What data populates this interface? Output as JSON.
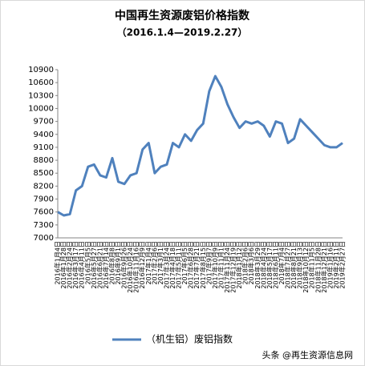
{
  "chart_data": {
    "type": "line",
    "title": "中国再生资源废铝价格指数",
    "subtitle": "（2016.1.4—2019.2.27）",
    "categories": [
      "2016年1月4日",
      "2016年1月28日",
      "2016年2月24日",
      "2016年3月17日",
      "2016年4月11日",
      "2016年5月5日",
      "2016年5月27日",
      "2016年6月21日",
      "2016年7月14日",
      "2016年8月8日",
      "2016年9月1日",
      "2016年9月26日",
      "2016年10月24日",
      "2016年11月16日",
      "2016年12月9日",
      "2017年1月4日",
      "2017年2月6日",
      "2017年3月1日",
      "2017年3月24日",
      "2017年4月18日",
      "2017年5月11日",
      "2017年6月5日",
      "2017年6月28日",
      "2017年7月21日",
      "2017年8月15日",
      "2017年9月7日",
      "2017年10月9日",
      "2017年11月1日",
      "2017年11月24日",
      "2017年12月19日",
      "2018年1月12日",
      "2018年2月6日",
      "2018年3月6日",
      "2018年3月29日",
      "2018年4月24日",
      "2018年5月17日",
      "2018年6月11日",
      "2018年7月4日",
      "2018年7月27日",
      "2018年8月21日",
      "2018年9月13日",
      "2018年10月12日",
      "2018年11月5日",
      "2018年11月28日",
      "2018年12月21日",
      "2019年1月16日",
      "2019年2月11日",
      "2019年2月27日"
    ],
    "series": [
      {
        "name": "（机生铝）废铝指数",
        "color": "#4f81bd",
        "values": [
          7600,
          7520,
          7550,
          8100,
          8200,
          8650,
          8700,
          8450,
          8400,
          8850,
          8300,
          8250,
          8450,
          8500,
          9050,
          9200,
          8500,
          8650,
          8700,
          9200,
          9100,
          9400,
          9250,
          9500,
          9650,
          10400,
          10750,
          10500,
          10100,
          9800,
          9550,
          9700,
          9650,
          9700,
          9600,
          9350,
          9700,
          9650,
          9200,
          9300,
          9750,
          9600,
          9450,
          9300,
          9150,
          9100,
          9100,
          9200
        ]
      }
    ],
    "ylim": [
      7000,
      10900
    ],
    "yticks": [
      7000,
      7300,
      7600,
      7900,
      8200,
      8500,
      8800,
      9100,
      9400,
      9700,
      10000,
      10300,
      10600,
      10900
    ],
    "grid": false,
    "legend": "bottom",
    "watermark": "头条 @再生资源信息网"
  }
}
